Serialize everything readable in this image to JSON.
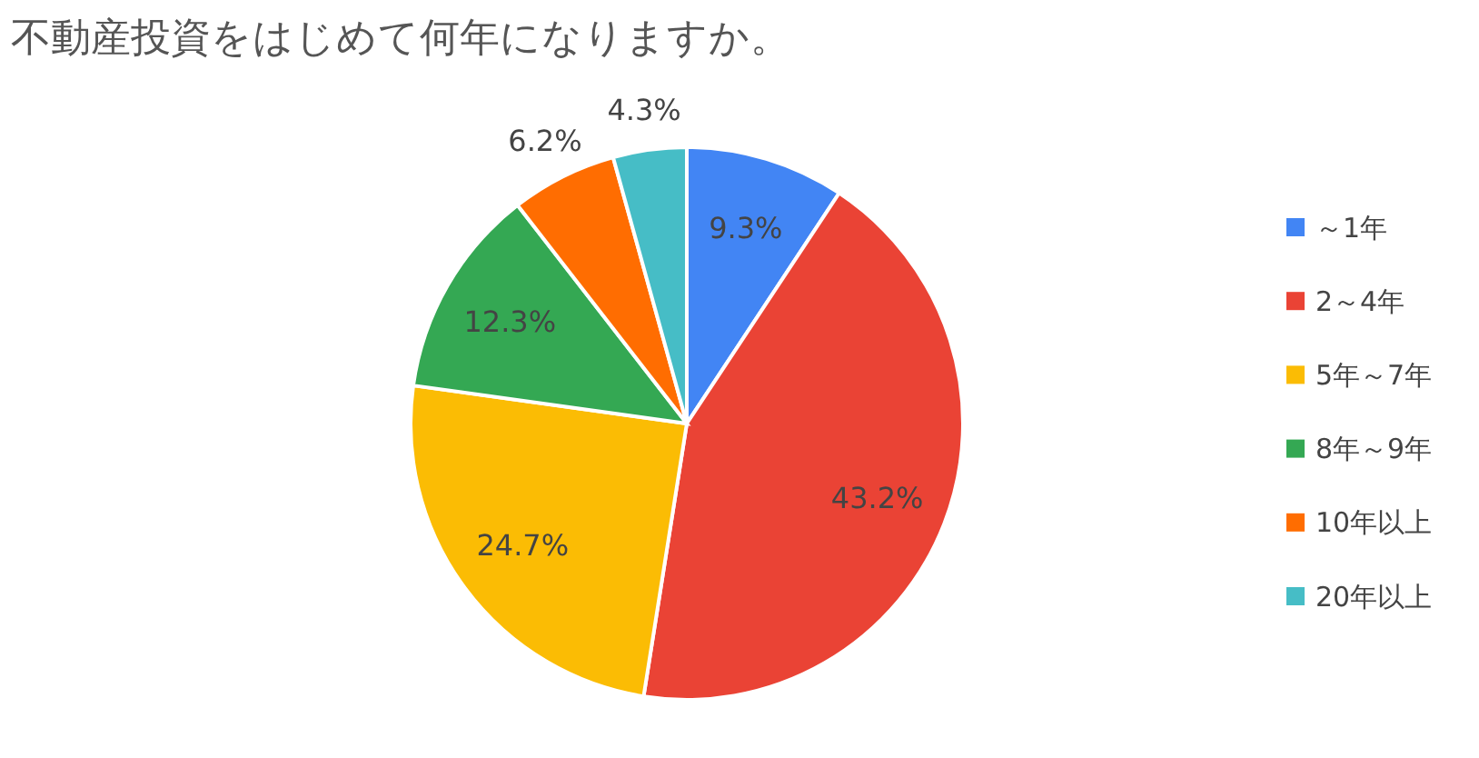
{
  "chart_data": {
    "type": "pie",
    "title": "不動産投資をはじめて何年になりますか。",
    "categories": [
      "～1年",
      "2～4年",
      "5年～7年",
      "8年～9年",
      "10年以上",
      "20年以上"
    ],
    "values": [
      9.3,
      43.2,
      24.7,
      12.3,
      6.2,
      4.3
    ],
    "colors": [
      "#4285f4",
      "#ea4335",
      "#fbbc04",
      "#34a853",
      "#ff6d01",
      "#46bdc6"
    ],
    "value_labels": [
      "9.3%",
      "43.2%",
      "24.7%",
      "12.3%",
      "6.2%",
      "4.3%"
    ],
    "legend": "right"
  }
}
